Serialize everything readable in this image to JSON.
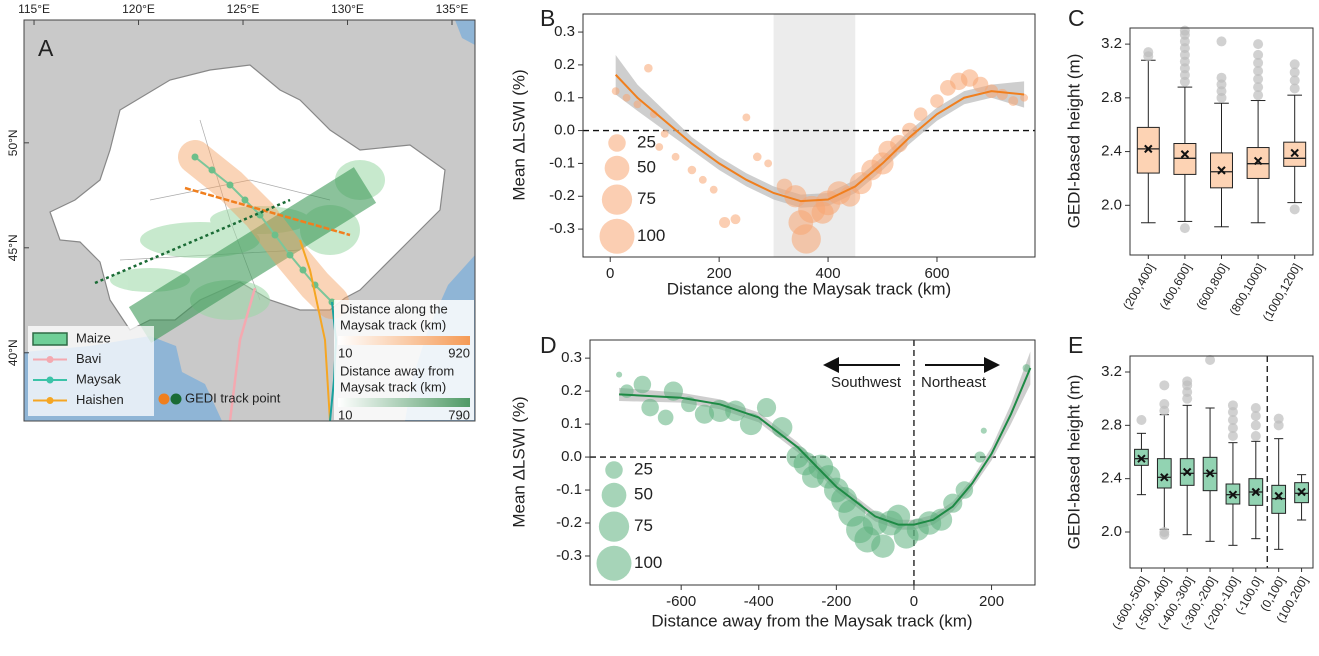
{
  "chart_data": [
    {
      "type": "map",
      "label": "A",
      "xlim": [
        114.52,
        136.1
      ],
      "ylim": [
        36.75,
        55.85
      ],
      "xticks": [
        {
          "value": 115,
          "label": "115°E"
        },
        {
          "value": 120,
          "label": "120°E"
        },
        {
          "value": 125,
          "label": "125°E"
        },
        {
          "value": 130,
          "label": "130°E"
        },
        {
          "value": 135,
          "label": "135°E"
        }
      ],
      "yticks": [
        {
          "value": 40,
          "label": "40°N"
        },
        {
          "value": 45,
          "label": "45°N"
        },
        {
          "value": 50,
          "label": "50°N"
        }
      ],
      "legend": [
        {
          "name": "Maize",
          "color": "#6fcf97",
          "marker": "patch"
        },
        {
          "name": "Bavi",
          "color": "#f4a9b0",
          "marker": "line"
        },
        {
          "name": "Maysak",
          "color": "#3cc3a8",
          "marker": "line"
        },
        {
          "name": "Haishen",
          "color": "#f5a623",
          "marker": "line"
        }
      ],
      "gedi": {
        "name": "GEDI track point",
        "colors": [
          "#f07f1e",
          "#1a6b35"
        ]
      },
      "colorbars": [
        {
          "label": [
            "Distance along the",
            "Maysak track (km)"
          ],
          "ticks": [
            10,
            920
          ],
          "color": "#f59a55"
        },
        {
          "label": [
            "Distance away from",
            "Maysak track (km)"
          ],
          "ticks": [
            10,
            790
          ],
          "color": "#4f9a66"
        }
      ]
    },
    {
      "type": "bubble",
      "label": "B",
      "xlabel": "Distance along the Maysak track (km)",
      "ylabel": "Mean ΔLSWI (%)",
      "xlim": [
        -50,
        780
      ],
      "ylim": [
        -0.385,
        0.355
      ],
      "xticks": [
        0,
        200,
        400,
        600
      ],
      "yticks": [
        0.3,
        0.2,
        0.1,
        {
          "value": 0,
          "label": "0.0"
        },
        -0.1,
        -0.2,
        -0.3
      ],
      "shade_x": [
        300,
        450
      ],
      "hline": 0,
      "color": "#f7a672",
      "size_legend": [
        25,
        50,
        75,
        100
      ],
      "points": {
        "x": [
          10,
          30,
          50,
          70,
          80,
          90,
          100,
          120,
          150,
          170,
          190,
          210,
          230,
          250,
          270,
          290,
          320,
          340,
          350,
          360,
          370,
          390,
          400,
          420,
          440,
          460,
          480,
          500,
          510,
          530,
          550,
          570,
          600,
          620,
          640,
          660,
          680,
          700,
          720,
          740,
          760
        ],
        "y": [
          0.12,
          0.1,
          0.08,
          0.19,
          0.05,
          -0.05,
          -0.01,
          -0.08,
          -0.12,
          -0.15,
          -0.18,
          -0.28,
          -0.27,
          0.04,
          -0.08,
          -0.1,
          -0.17,
          -0.2,
          -0.28,
          -0.33,
          -0.24,
          -0.25,
          -0.22,
          -0.19,
          -0.2,
          -0.16,
          -0.12,
          -0.1,
          -0.06,
          -0.04,
          0.0,
          0.05,
          0.09,
          0.13,
          0.15,
          0.16,
          0.14,
          0.12,
          0.11,
          0.09,
          0.1
        ],
        "size": [
          5,
          5,
          5,
          6,
          5,
          5,
          5,
          5,
          6,
          5,
          5,
          10,
          8,
          5,
          6,
          5,
          20,
          40,
          50,
          70,
          60,
          40,
          50,
          45,
          35,
          40,
          35,
          40,
          30,
          25,
          20,
          15,
          15,
          20,
          25,
          25,
          20,
          15,
          10,
          8,
          5
        ]
      },
      "fit": {
        "color": "#f07f1e",
        "band_color": "#bdbdbd",
        "x": [
          10,
          50,
          100,
          150,
          200,
          250,
          300,
          350,
          400,
          450,
          500,
          550,
          600,
          650,
          700,
          760
        ],
        "y": [
          0.17,
          0.1,
          0.03,
          -0.04,
          -0.1,
          -0.15,
          -0.19,
          -0.215,
          -0.21,
          -0.17,
          -0.1,
          -0.02,
          0.05,
          0.1,
          0.12,
          0.11
        ],
        "lower": [
          0.11,
          0.06,
          0.0,
          -0.06,
          -0.12,
          -0.17,
          -0.21,
          -0.235,
          -0.23,
          -0.19,
          -0.12,
          -0.04,
          0.03,
          0.08,
          0.1,
          0.07
        ],
        "upper": [
          0.23,
          0.14,
          0.06,
          -0.02,
          -0.08,
          -0.13,
          -0.17,
          -0.195,
          -0.19,
          -0.15,
          -0.08,
          0.0,
          0.07,
          0.12,
          0.14,
          0.15
        ]
      }
    },
    {
      "type": "box",
      "label": "C",
      "ylabel": "GEDI-based height (m)",
      "ylim": [
        1.63,
        3.32
      ],
      "yticks": [
        3.2,
        2.8,
        2.4,
        {
          "value": 2,
          "label": "2.0"
        }
      ],
      "color": "#fdd3b4",
      "categories": [
        "(200,400]",
        "(400,600]",
        "(600,800]",
        "(800,1000]",
        "(1000,1200]"
      ],
      "boxes": [
        {
          "whislo": 1.87,
          "q1": 2.24,
          "median": 2.42,
          "q3": 2.58,
          "whishi": 3.08,
          "mean": 2.42,
          "fliers": [
            3.11,
            3.14
          ]
        },
        {
          "whislo": 1.88,
          "q1": 2.23,
          "median": 2.35,
          "q3": 2.46,
          "whishi": 2.88,
          "mean": 2.38,
          "fliers": [
            1.83,
            2.92,
            2.97,
            3.02,
            3.07,
            3.12,
            3.17,
            3.22,
            3.27,
            3.3
          ]
        },
        {
          "whislo": 1.84,
          "q1": 2.13,
          "median": 2.25,
          "q3": 2.39,
          "whishi": 2.76,
          "mean": 2.26,
          "fliers": [
            2.8,
            2.85,
            2.9,
            2.95,
            3.22
          ]
        },
        {
          "whislo": 1.87,
          "q1": 2.2,
          "median": 2.31,
          "q3": 2.43,
          "whishi": 2.78,
          "mean": 2.33,
          "fliers": [
            2.82,
            2.88,
            2.94,
            3.0,
            3.06,
            3.12,
            3.2
          ]
        },
        {
          "whislo": 2.02,
          "q1": 2.29,
          "median": 2.35,
          "q3": 2.47,
          "whishi": 2.82,
          "mean": 2.39,
          "fliers": [
            1.97,
            2.87,
            2.93,
            2.99,
            3.05
          ]
        }
      ]
    },
    {
      "type": "bubble",
      "label": "D",
      "xlabel": "Distance away from the Maysak track (km)",
      "ylabel": "Mean ΔLSWI (%)",
      "xlim": [
        -835,
        312
      ],
      "ylim": [
        -0.388,
        0.355
      ],
      "xticks": [
        -600,
        -400,
        -200,
        0,
        200
      ],
      "yticks": [
        0.3,
        0.2,
        0.1,
        {
          "value": 0,
          "label": "0.0"
        },
        -0.1,
        -0.2,
        -0.3
      ],
      "hline": 0,
      "vline": 0,
      "color": "#5cb07d",
      "size_legend": [
        25,
        50,
        75,
        100
      ],
      "annotations": [
        "Southwest",
        "Northeast"
      ],
      "points": {
        "x": [
          -760,
          -740,
          -700,
          -680,
          -640,
          -620,
          -580,
          -540,
          -500,
          -460,
          -420,
          -380,
          -340,
          -300,
          -280,
          -260,
          -240,
          -220,
          -200,
          -180,
          -160,
          -140,
          -120,
          -100,
          -80,
          -60,
          -40,
          -20,
          10,
          40,
          70,
          100,
          130,
          170,
          180,
          290
        ],
        "y": [
          0.25,
          0.2,
          0.22,
          0.15,
          0.12,
          0.2,
          0.16,
          0.13,
          0.14,
          0.14,
          0.1,
          0.15,
          0.09,
          0.0,
          -0.02,
          -0.06,
          -0.03,
          -0.06,
          -0.1,
          -0.13,
          -0.17,
          -0.22,
          -0.25,
          -0.2,
          -0.27,
          -0.2,
          -0.18,
          -0.24,
          -0.22,
          -0.2,
          -0.19,
          -0.14,
          -0.1,
          0.0,
          0.08,
          0.27
        ],
        "size": [
          3,
          15,
          25,
          25,
          20,
          30,
          20,
          30,
          40,
          35,
          40,
          30,
          35,
          40,
          45,
          40,
          50,
          45,
          50,
          55,
          60,
          60,
          55,
          50,
          45,
          50,
          45,
          50,
          40,
          45,
          40,
          30,
          25,
          10,
          3,
          5
        ]
      },
      "fit": {
        "color": "#1e8a45",
        "band_color": "#bdbdbd",
        "x": [
          -760,
          -600,
          -500,
          -400,
          -300,
          -200,
          -100,
          -40,
          0,
          50,
          100,
          150,
          200,
          250,
          300
        ],
        "y": [
          0.19,
          0.18,
          0.16,
          0.12,
          0.03,
          -0.09,
          -0.18,
          -0.205,
          -0.205,
          -0.19,
          -0.15,
          -0.08,
          0.01,
          0.13,
          0.27
        ],
        "lower": [
          0.17,
          0.165,
          0.145,
          0.105,
          0.015,
          -0.105,
          -0.195,
          -0.22,
          -0.22,
          -0.205,
          -0.165,
          -0.095,
          -0.01,
          0.1,
          0.22
        ],
        "upper": [
          0.21,
          0.195,
          0.175,
          0.135,
          0.045,
          -0.075,
          -0.165,
          -0.19,
          -0.19,
          -0.175,
          -0.135,
          -0.065,
          0.03,
          0.16,
          0.32
        ]
      }
    },
    {
      "type": "box",
      "label": "E",
      "ylabel": "GEDI-based height (m)",
      "ylim": [
        1.73,
        3.32
      ],
      "yticks": [
        3.2,
        2.8,
        2.4,
        {
          "value": 2,
          "label": "2.0"
        }
      ],
      "color": "#92d3b2",
      "divider_index": 6,
      "categories": [
        "(-600,-500]",
        "(-500,-400]",
        "(-400,-300]",
        "(-300,-200]",
        "(-200,-100]",
        "(-100,0]",
        "(0,100]",
        "(100,200]"
      ],
      "boxes": [
        {
          "whislo": 2.28,
          "q1": 2.5,
          "median": 2.55,
          "q3": 2.62,
          "whishi": 2.74,
          "mean": 2.55,
          "fliers": [
            2.84
          ]
        },
        {
          "whislo": 2.02,
          "q1": 2.33,
          "median": 2.41,
          "q3": 2.55,
          "whishi": 2.88,
          "mean": 2.41,
          "fliers": [
            1.98,
            2.0,
            2.91,
            2.96,
            3.1
          ]
        },
        {
          "whislo": 1.98,
          "q1": 2.35,
          "median": 2.44,
          "q3": 2.55,
          "whishi": 2.95,
          "mean": 2.45,
          "fliers": [
            3.0,
            3.05,
            3.1,
            3.13
          ]
        },
        {
          "whislo": 1.93,
          "q1": 2.31,
          "median": 2.44,
          "q3": 2.56,
          "whishi": 2.93,
          "mean": 2.44,
          "fliers": [
            3.29
          ]
        },
        {
          "whislo": 1.9,
          "q1": 2.21,
          "median": 2.28,
          "q3": 2.36,
          "whishi": 2.67,
          "mean": 2.28,
          "fliers": [
            2.72,
            2.78,
            2.84,
            2.9,
            2.95
          ]
        },
        {
          "whislo": 1.95,
          "q1": 2.2,
          "median": 2.3,
          "q3": 2.4,
          "whishi": 2.68,
          "mean": 2.3,
          "fliers": [
            2.72,
            2.8,
            2.87,
            2.93
          ]
        },
        {
          "whislo": 1.87,
          "q1": 2.14,
          "median": 2.25,
          "q3": 2.35,
          "whishi": 2.7,
          "mean": 2.27,
          "fliers": [
            2.8,
            2.85
          ]
        },
        {
          "whislo": 2.09,
          "q1": 2.22,
          "median": 2.29,
          "q3": 2.37,
          "whishi": 2.43,
          "mean": 2.3,
          "fliers": []
        }
      ]
    }
  ]
}
